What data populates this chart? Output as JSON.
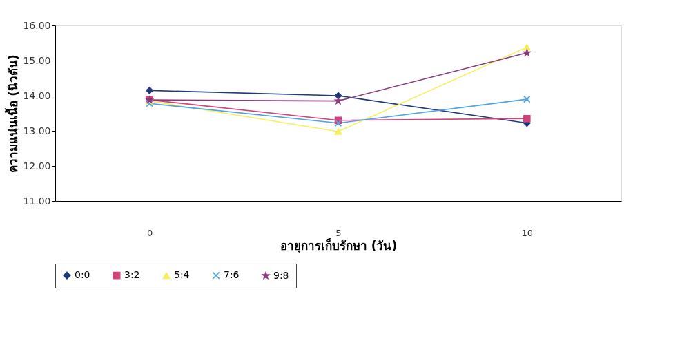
{
  "chart_data": {
    "type": "line",
    "xlabel": "อายุการเก็บรักษา (วัน)",
    "ylabel": "ความแน่นเนื้อ (นิวตัน)",
    "categories": [
      "0",
      "5",
      "10"
    ],
    "series": [
      {
        "name": "0:0",
        "color": "#1f3a7a",
        "marker": "diamond",
        "values": [
          14.15,
          14.0,
          13.22
        ]
      },
      {
        "name": "3:2",
        "color": "#d6407a",
        "marker": "square",
        "values": [
          13.88,
          13.3,
          13.35
        ]
      },
      {
        "name": "5:4",
        "color": "#f5ef5a",
        "marker": "triangle",
        "values": [
          13.85,
          12.98,
          15.38
        ]
      },
      {
        "name": "7:6",
        "color": "#4aa3e6",
        "marker": "cross",
        "values": [
          13.78,
          13.22,
          13.9
        ]
      },
      {
        "name": "9:8",
        "color": "#8a3a7a",
        "marker": "star",
        "values": [
          13.88,
          13.85,
          15.22
        ]
      }
    ],
    "ylim": [
      11,
      16
    ],
    "yticks": [
      {
        "value": 11,
        "label": "11.00"
      },
      {
        "value": 12,
        "label": "12.00"
      },
      {
        "value": 13,
        "label": "13.00"
      },
      {
        "value": 14,
        "label": "14.00"
      },
      {
        "value": 15,
        "label": "15.00"
      },
      {
        "value": 16,
        "label": "16.00"
      }
    ],
    "grid": false,
    "legend": "bottom",
    "line_style": "solid"
  }
}
